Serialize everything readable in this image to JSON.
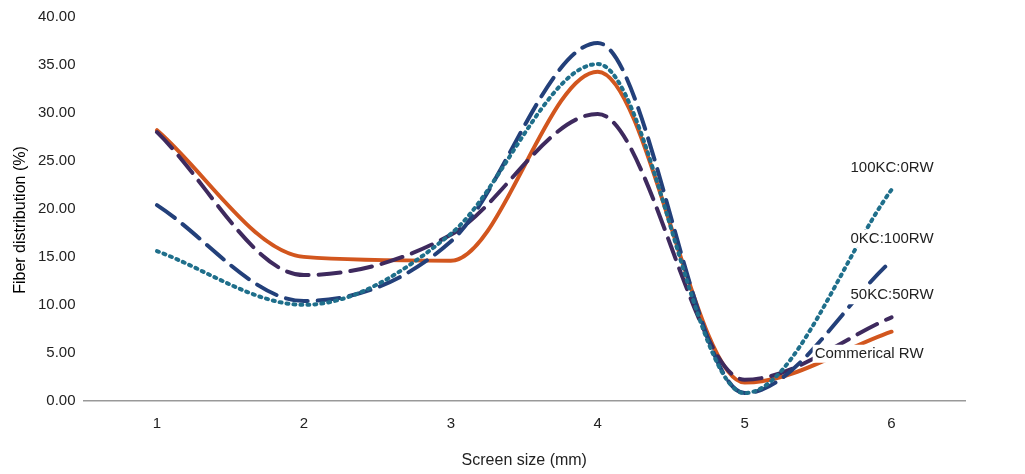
{
  "chart_data": {
    "type": "line",
    "xlabel": "Screen size (mm)",
    "ylabel": "Fiber distribution (%)",
    "categories": [
      "1",
      "2",
      "3",
      "4",
      "5",
      "6"
    ],
    "ylim": [
      0,
      40
    ],
    "yticks": [
      {
        "value": 0,
        "label": "0.00"
      },
      {
        "value": 5,
        "label": "5.00"
      },
      {
        "value": 10,
        "label": "10.00"
      },
      {
        "value": 15,
        "label": "15.00"
      },
      {
        "value": 20,
        "label": "20.00"
      },
      {
        "value": 25,
        "label": "25.00"
      },
      {
        "value": 30,
        "label": "30.00"
      },
      {
        "value": 35,
        "label": "35.00"
      },
      {
        "value": 40,
        "label": "40.00"
      }
    ],
    "grid": false,
    "legend": false,
    "marker": "none",
    "series": [
      {
        "name": "100KC:0RW",
        "color": "#1f6f8b",
        "line_style": "dotted",
        "values": [
          15.6,
          10.0,
          17.4,
          35.1,
          0.8,
          22.0
        ]
      },
      {
        "name": "0KC:100RW",
        "color": "#23407a",
        "line_style": "dashed",
        "values": [
          20.4,
          10.4,
          16.6,
          37.3,
          0.8,
          14.6
        ]
      },
      {
        "name": "50KC:50RW",
        "color": "#3e2a5e",
        "line_style": "dashed",
        "values": [
          28.0,
          13.1,
          17.3,
          29.9,
          2.2,
          8.7
        ]
      },
      {
        "name": "Commerical RW",
        "color": "#d2561e",
        "line_style": "solid",
        "values": [
          28.2,
          15.0,
          14.6,
          34.3,
          1.9,
          7.2
        ]
      }
    ]
  }
}
